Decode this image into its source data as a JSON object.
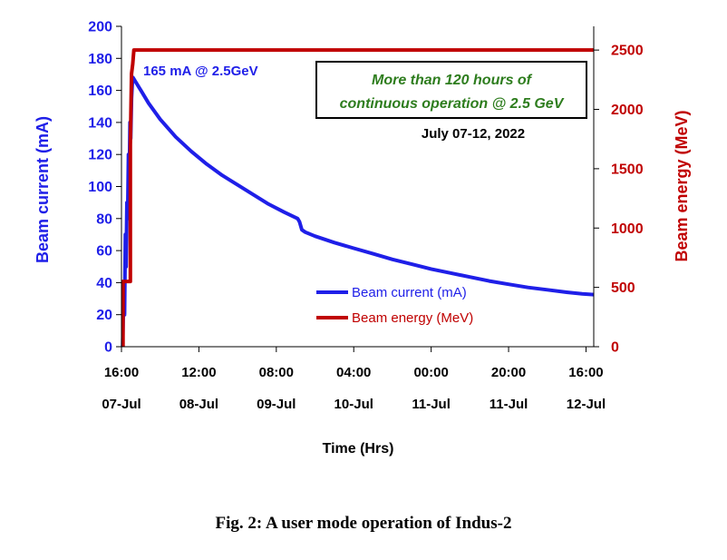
{
  "chart_data": {
    "type": "line",
    "title": "",
    "xlabel": "Time (Hrs)",
    "ylabel_left": "Beam current (mA)",
    "ylabel_right": "Beam energy (MeV)",
    "x_unit": "hours since 16:00 07-Jul",
    "xlim": [
      0,
      122
    ],
    "ylim_left": [
      0,
      200
    ],
    "ylim_right": [
      0,
      2700
    ],
    "yticks_left": [
      0,
      20,
      40,
      60,
      80,
      100,
      120,
      140,
      160,
      180,
      200
    ],
    "yticks_right": [
      0,
      500,
      1000,
      1500,
      2000,
      2500
    ],
    "xticks": [
      {
        "x": 0,
        "time": "16:00",
        "date": "07-Jul"
      },
      {
        "x": 20,
        "time": "12:00",
        "date": "08-Jul"
      },
      {
        "x": 40,
        "time": "08:00",
        "date": "09-Jul"
      },
      {
        "x": 60,
        "time": "04:00",
        "date": "10-Jul"
      },
      {
        "x": 80,
        "time": "00:00",
        "date": "11-Jul"
      },
      {
        "x": 100,
        "time": "20:00",
        "date": "11-Jul"
      },
      {
        "x": 120,
        "time": "16:00",
        "date": "12-Jul"
      }
    ],
    "series": [
      {
        "name": "Beam current (mA)",
        "axis": "left",
        "color": "#1f1fe8",
        "points": [
          [
            0.3,
            0
          ],
          [
            0.6,
            40
          ],
          [
            0.8,
            20
          ],
          [
            1.0,
            70
          ],
          [
            1.2,
            50
          ],
          [
            1.4,
            90
          ],
          [
            1.6,
            80
          ],
          [
            1.8,
            120
          ],
          [
            2.0,
            100
          ],
          [
            2.2,
            140
          ],
          [
            2.4,
            130
          ],
          [
            2.6,
            155
          ],
          [
            2.8,
            165
          ],
          [
            3.0,
            168
          ],
          [
            3.5,
            166
          ],
          [
            5,
            160
          ],
          [
            7,
            152
          ],
          [
            10,
            142
          ],
          [
            14,
            131
          ],
          [
            18,
            122
          ],
          [
            22,
            114
          ],
          [
            26,
            107
          ],
          [
            30,
            101
          ],
          [
            34,
            95
          ],
          [
            38,
            89
          ],
          [
            42,
            84
          ],
          [
            45.5,
            80
          ],
          [
            46,
            78
          ],
          [
            46.6,
            73
          ],
          [
            47.5,
            71.5
          ],
          [
            50,
            69
          ],
          [
            55,
            65
          ],
          [
            60,
            61.5
          ],
          [
            65,
            58
          ],
          [
            70,
            54.5
          ],
          [
            75,
            51.5
          ],
          [
            80,
            48.5
          ],
          [
            85,
            46
          ],
          [
            90,
            43.5
          ],
          [
            95,
            41
          ],
          [
            100,
            39
          ],
          [
            105,
            37
          ],
          [
            110,
            35.5
          ],
          [
            115,
            34
          ],
          [
            119,
            33
          ],
          [
            122,
            32.5
          ]
        ]
      },
      {
        "name": "Beam energy (MeV)",
        "axis": "right",
        "color": "#c00000",
        "points": [
          [
            0.4,
            0
          ],
          [
            0.4,
            550
          ],
          [
            2.3,
            550
          ],
          [
            2.3,
            1700
          ],
          [
            2.6,
            2300
          ],
          [
            2.9,
            2380
          ],
          [
            3.2,
            2500
          ],
          [
            122,
            2500
          ]
        ]
      }
    ],
    "legend": {
      "position": "center-right",
      "entries": [
        "Beam current (mA)",
        "Beam energy (MeV)"
      ]
    },
    "annotations": {
      "peak_label": "165 mA @ 2.5GeV",
      "box_line1": "More than 120 hours of",
      "box_line2": "continuous operation @ 2.5 GeV",
      "date_range": "July  07-12, 2022"
    },
    "caption": "Fig. 2: A user mode operation of Indus-2"
  }
}
